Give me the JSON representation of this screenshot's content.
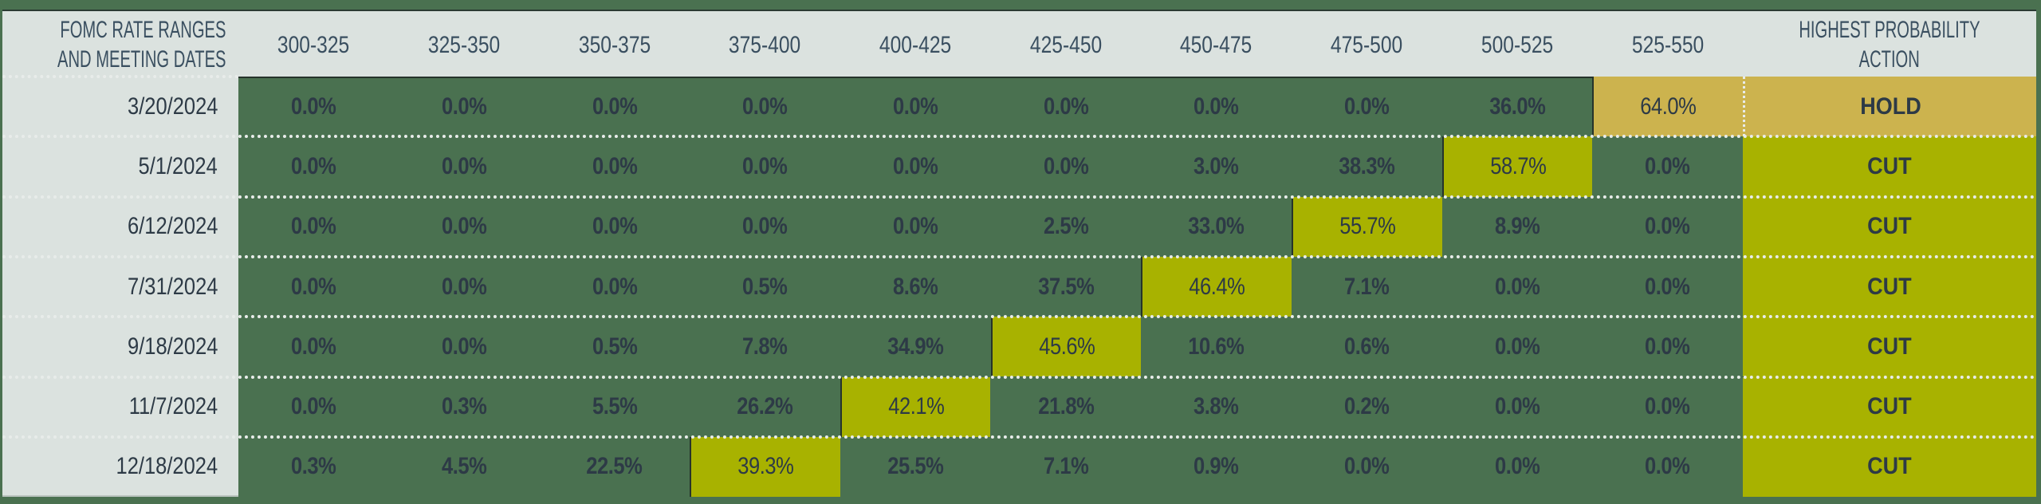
{
  "table": {
    "header": {
      "first_col_line1": "FOMC RATE RANGES",
      "first_col_line2": "AND MEETING DATES",
      "ranges": [
        "300-325",
        "325-350",
        "350-375",
        "375-400",
        "400-425",
        "425-450",
        "450-475",
        "475-500",
        "500-525",
        "525-550"
      ],
      "action_line1": "HIGHEST PROBABILITY",
      "action_line2": "ACTION"
    },
    "rows": [
      {
        "date": "3/20/2024",
        "values": [
          "0.0%",
          "0.0%",
          "0.0%",
          "0.0%",
          "0.0%",
          "0.0%",
          "0.0%",
          "0.0%",
          "36.0%",
          "64.0%"
        ],
        "max_index": 9,
        "action": "HOLD"
      },
      {
        "date": "5/1/2024",
        "values": [
          "0.0%",
          "0.0%",
          "0.0%",
          "0.0%",
          "0.0%",
          "0.0%",
          "3.0%",
          "38.3%",
          "58.7%",
          "0.0%"
        ],
        "max_index": 8,
        "action": "CUT"
      },
      {
        "date": "6/12/2024",
        "values": [
          "0.0%",
          "0.0%",
          "0.0%",
          "0.0%",
          "0.0%",
          "2.5%",
          "33.0%",
          "55.7%",
          "8.9%",
          "0.0%"
        ],
        "max_index": 7,
        "action": "CUT"
      },
      {
        "date": "7/31/2024",
        "values": [
          "0.0%",
          "0.0%",
          "0.0%",
          "0.5%",
          "8.6%",
          "37.5%",
          "46.4%",
          "7.1%",
          "0.0%",
          "0.0%"
        ],
        "max_index": 6,
        "action": "CUT"
      },
      {
        "date": "9/18/2024",
        "values": [
          "0.0%",
          "0.0%",
          "0.5%",
          "7.8%",
          "34.9%",
          "45.6%",
          "10.6%",
          "0.6%",
          "0.0%",
          "0.0%"
        ],
        "max_index": 5,
        "action": "CUT"
      },
      {
        "date": "11/7/2024",
        "values": [
          "0.0%",
          "0.3%",
          "5.5%",
          "26.2%",
          "42.1%",
          "21.8%",
          "3.8%",
          "0.2%",
          "0.0%",
          "0.0%"
        ],
        "max_index": 4,
        "action": "CUT"
      },
      {
        "date": "12/18/2024",
        "values": [
          "0.3%",
          "4.5%",
          "22.5%",
          "39.3%",
          "25.5%",
          "7.1%",
          "0.9%",
          "0.0%",
          "0.0%",
          "0.0%"
        ],
        "max_index": 3,
        "action": "CUT"
      }
    ]
  },
  "colors": {
    "background_green": "#4a7150",
    "highlight_lime": "#a8b200",
    "highlight_gold": "#ccb34e",
    "header_gray": "#dbe2df",
    "text_dark": "#2d3a46",
    "header_text": "#3a4f60"
  },
  "chart_data": {
    "type": "table",
    "title": "FOMC Rate Ranges and Meeting Dates",
    "columns": [
      "FOMC RATE RANGES AND MEETING DATES",
      "300-325",
      "325-350",
      "350-375",
      "375-400",
      "400-425",
      "425-450",
      "450-475",
      "475-500",
      "500-525",
      "525-550",
      "HIGHEST PROBABILITY ACTION"
    ],
    "categories": [
      "300-325",
      "325-350",
      "350-375",
      "375-400",
      "400-425",
      "425-450",
      "450-475",
      "475-500",
      "500-525",
      "525-550"
    ],
    "series": [
      {
        "name": "3/20/2024",
        "values": [
          0.0,
          0.0,
          0.0,
          0.0,
          0.0,
          0.0,
          0.0,
          0.0,
          36.0,
          64.0
        ],
        "action": "HOLD"
      },
      {
        "name": "5/1/2024",
        "values": [
          0.0,
          0.0,
          0.0,
          0.0,
          0.0,
          0.0,
          3.0,
          38.3,
          58.7,
          0.0
        ],
        "action": "CUT"
      },
      {
        "name": "6/12/2024",
        "values": [
          0.0,
          0.0,
          0.0,
          0.0,
          0.0,
          2.5,
          33.0,
          55.7,
          8.9,
          0.0
        ],
        "action": "CUT"
      },
      {
        "name": "7/31/2024",
        "values": [
          0.0,
          0.0,
          0.0,
          0.5,
          8.6,
          37.5,
          46.4,
          7.1,
          0.0,
          0.0
        ],
        "action": "CUT"
      },
      {
        "name": "9/18/2024",
        "values": [
          0.0,
          0.0,
          0.5,
          7.8,
          34.9,
          45.6,
          10.6,
          0.6,
          0.0,
          0.0
        ],
        "action": "CUT"
      },
      {
        "name": "11/7/2024",
        "values": [
          0.0,
          0.3,
          5.5,
          26.2,
          42.1,
          21.8,
          3.8,
          0.2,
          0.0,
          0.0
        ],
        "action": "CUT"
      },
      {
        "name": "12/18/2024",
        "values": [
          0.3,
          4.5,
          22.5,
          39.3,
          25.5,
          7.1,
          0.9,
          0.0,
          0.0,
          0.0
        ],
        "action": "CUT"
      }
    ],
    "unit": "%"
  }
}
